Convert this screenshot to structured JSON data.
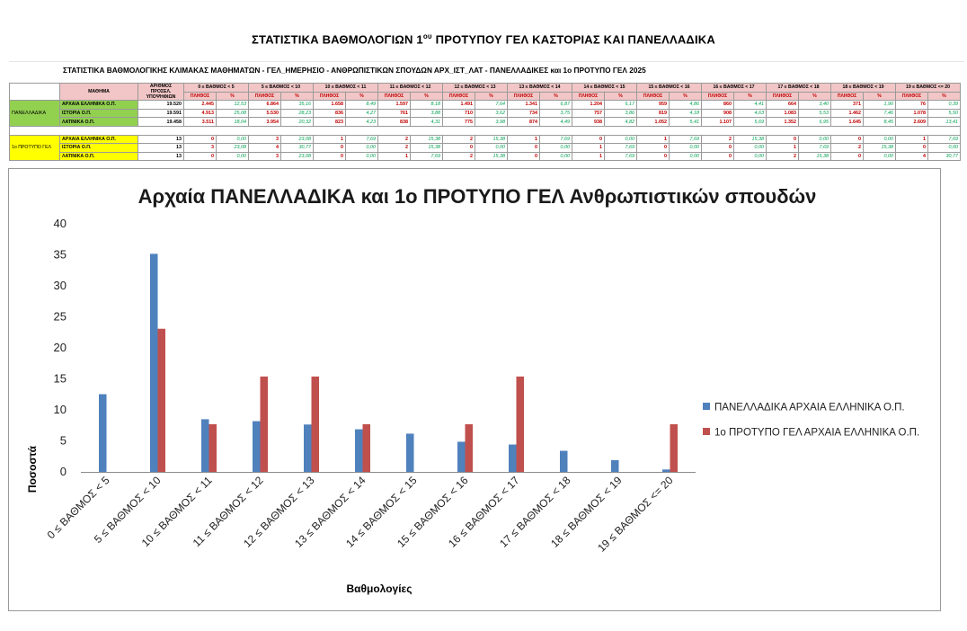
{
  "page_title": {
    "main": "ΣΤΑΤΙΣΤΙΚΑ ΒΑΘΜΟΛΟΓΙΩΝ 1",
    "sup": "ου",
    "rest": " ΠΡΟΤΥΠΟΥ ΓΕΛ ΚΑΣΤΟΡΙΑΣ ΚΑΙ  ΠΑΝΕΛΛΑΔΙΚΑ"
  },
  "sheet": {
    "title": "ΣΤΑΤΙΣΤΙΚΑ ΒΑΘΜΟΛΟΓΙΚΗΣ ΚΛΙΜΑΚΑΣ ΜΑΘΗΜΑΤΩΝ - ΓΕΛ_ΗΜΕΡΗΣΙΟ - ΑΝΘΡΩΠΙΣΤΙΚΩΝ ΣΠΟΥΔΩΝ ΑΡΧ_ΙΣΤ_ΛΑΤ - ΠΑΝΕΛΛΑΔΙΚΕΣ και 1ο ΠΡΟΤΥΠΟ ΓΕΛ 2025",
    "col_subject": "ΜΑΘΗΜΑ",
    "col_candidates": "ΑΡΙΘΜΟΣ ΠΡΟΣΕΛ. ΥΠΟΨΗΦΙΩΝ",
    "sub_count": "ΠΛΗΘΟΣ",
    "sub_pct": "%",
    "ranges": [
      "0 ≤ ΒΑΘΜΟΣ < 5",
      "5 ≤ ΒΑΘΜΟΣ < 10",
      "10 ≤ ΒΑΘΜΟΣ < 11",
      "11 ≤ ΒΑΘΜΟΣ < 12",
      "12 ≤ ΒΑΘΜΟΣ < 13",
      "13 ≤ ΒΑΘΜΟΣ < 14",
      "14 ≤ ΒΑΘΜΟΣ < 15",
      "15 ≤ ΒΑΘΜΟΣ < 16",
      "16 ≤ ΒΑΘΜΟΣ < 17",
      "17 ≤ ΒΑΘΜΟΣ < 18",
      "18 ≤ ΒΑΘΜΟΣ < 19",
      "19 ≤ ΒΑΘΜΟΣ <= 20"
    ],
    "groups": [
      {
        "label": "ΠΑΝΕΛΛΑΔΙΚΑ",
        "style": "pan",
        "rows": [
          {
            "subject": "ΑΡΧΑΙΑ ΕΛΛΗΝΙΚΑ Ο.Π.",
            "candidates": "19.520",
            "cells": [
              [
                "2.445",
                "12,53"
              ],
              [
                "6.864",
                "35,16"
              ],
              [
                "1.658",
                "8,49"
              ],
              [
                "1.597",
                "8,18"
              ],
              [
                "1.491",
                "7,64"
              ],
              [
                "1.341",
                "6,87"
              ],
              [
                "1.204",
                "6,17"
              ],
              [
                "959",
                "4,86"
              ],
              [
                "860",
                "4,41"
              ],
              [
                "664",
                "3,40"
              ],
              [
                "371",
                "1,90"
              ],
              [
                "76",
                "0,39"
              ]
            ]
          },
          {
            "subject": "ΙΣΤΟΡΙΑ Ο.Π.",
            "candidates": "19.591",
            "cells": [
              [
                "4.913",
                "25,08"
              ],
              [
                "5.530",
                "28,23"
              ],
              [
                "836",
                "4,27"
              ],
              [
                "761",
                "3,88"
              ],
              [
                "710",
                "3,62"
              ],
              [
                "734",
                "3,75"
              ],
              [
                "757",
                "3,86"
              ],
              [
                "819",
                "4,18"
              ],
              [
                "908",
                "4,63"
              ],
              [
                "1.083",
                "5,53"
              ],
              [
                "1.462",
                "7,46"
              ],
              [
                "1.078",
                "5,50"
              ]
            ]
          },
          {
            "subject": "ΛΑΤΙΝΙΚΑ Ο.Π.",
            "candidates": "19.458",
            "cells": [
              [
                "3.511",
                "18,04"
              ],
              [
                "3.954",
                "20,32"
              ],
              [
                "823",
                "4,23"
              ],
              [
                "838",
                "4,31"
              ],
              [
                "775",
                "3,98"
              ],
              [
                "874",
                "4,49"
              ],
              [
                "938",
                "4,82"
              ],
              [
                "1.052",
                "5,41"
              ],
              [
                "1.107",
                "5,69"
              ],
              [
                "1.352",
                "6,95"
              ],
              [
                "1.645",
                "8,45"
              ],
              [
                "2.609",
                "13,41"
              ]
            ]
          }
        ]
      },
      {
        "label": "1ο ΠΡΟΤΥΠΟ ΓΕΛ",
        "style": "pro",
        "rows": [
          {
            "subject": "ΑΡΧΑΙΑ ΕΛΛΗΝΙΚΑ Ο.Π.",
            "candidates": "13",
            "cells": [
              [
                "0",
                "0,00"
              ],
              [
                "3",
                "23,08"
              ],
              [
                "1",
                "7,69"
              ],
              [
                "2",
                "15,38"
              ],
              [
                "2",
                "15,38"
              ],
              [
                "1",
                "7,69"
              ],
              [
                "0",
                "0,00"
              ],
              [
                "1",
                "7,69"
              ],
              [
                "2",
                "15,38"
              ],
              [
                "0",
                "0,00"
              ],
              [
                "0",
                "0,00"
              ],
              [
                "1",
                "7,69"
              ]
            ]
          },
          {
            "subject": "ΙΣΤΟΡΙΑ Ο.Π.",
            "candidates": "13",
            "cells": [
              [
                "3",
                "23,08"
              ],
              [
                "4",
                "30,77"
              ],
              [
                "0",
                "0,00"
              ],
              [
                "2",
                "15,38"
              ],
              [
                "0",
                "0,00"
              ],
              [
                "0",
                "0,00"
              ],
              [
                "1",
                "7,69"
              ],
              [
                "0",
                "0,00"
              ],
              [
                "0",
                "0,00"
              ],
              [
                "1",
                "7,69"
              ],
              [
                "2",
                "15,38"
              ],
              [
                "0",
                "0,00"
              ]
            ]
          },
          {
            "subject": "ΛΑΤΙΝΙΚΑ Ο.Π.",
            "candidates": "13",
            "cells": [
              [
                "0",
                "0,00"
              ],
              [
                "3",
                "23,08"
              ],
              [
                "0",
                "0,00"
              ],
              [
                "1",
                "7,69"
              ],
              [
                "2",
                "15,38"
              ],
              [
                "0",
                "0,00"
              ],
              [
                "1",
                "7,69"
              ],
              [
                "0",
                "0,00"
              ],
              [
                "0",
                "0,00"
              ],
              [
                "2",
                "15,38"
              ],
              [
                "0",
                "0,00"
              ],
              [
                "4",
                "30,77"
              ]
            ]
          }
        ]
      }
    ]
  },
  "chart_data": {
    "type": "bar",
    "title": "Αρχαία ΠΑΝΕΛΛΑΔΙΚΑ και 1ο ΠΡΟΤΥΠΟ ΓΕΛ Ανθρωπιστικών σπουδών",
    "xlabel": "Βαθμολογίες",
    "ylabel": "Ποσοστά",
    "ylim": [
      0,
      40
    ],
    "yticks": [
      0,
      5,
      10,
      15,
      20,
      25,
      30,
      35,
      40
    ],
    "grid": false,
    "legend_position": "right",
    "categories": [
      "0 ≤ ΒΑΘΜΟΣ < 5",
      "5 ≤ ΒΑΘΜΟΣ < 10",
      "10 ≤ ΒΑΘΜΟΣ < 11",
      "11 ≤ ΒΑΘΜΟΣ < 12",
      "12 ≤ ΒΑΘΜΟΣ < 13",
      "13 ≤ ΒΑΘΜΟΣ < 14",
      "14 ≤ ΒΑΘΜΟΣ < 15",
      "15 ≤ ΒΑΘΜΟΣ < 16",
      "16 ≤ ΒΑΘΜΟΣ < 17",
      "17 ≤ ΒΑΘΜΟΣ < 18",
      "18 ≤ ΒΑΘΜΟΣ < 19",
      "19 ≤ ΒΑΘΜΟΣ <= 20"
    ],
    "series": [
      {
        "name": "ΠΑΝΕΛΛΑΔΙΚΑ ΑΡΧΑΙΑ ΕΛΛΗΝΙΚΑ Ο.Π.",
        "color": "#4f81bd",
        "values": [
          12.53,
          35.16,
          8.49,
          8.18,
          7.64,
          6.87,
          6.17,
          4.86,
          4.41,
          3.4,
          1.9,
          0.39
        ]
      },
      {
        "name": "1ο ΠΡΟΤΥΠΟ ΓΕΛ ΑΡΧΑΙΑ ΕΛΛΗΝΙΚΑ Ο.Π.",
        "color": "#c0504d",
        "values": [
          0.0,
          23.08,
          7.69,
          15.38,
          15.38,
          7.69,
          0.0,
          7.69,
          15.38,
          0.0,
          0.0,
          7.69
        ]
      }
    ]
  }
}
